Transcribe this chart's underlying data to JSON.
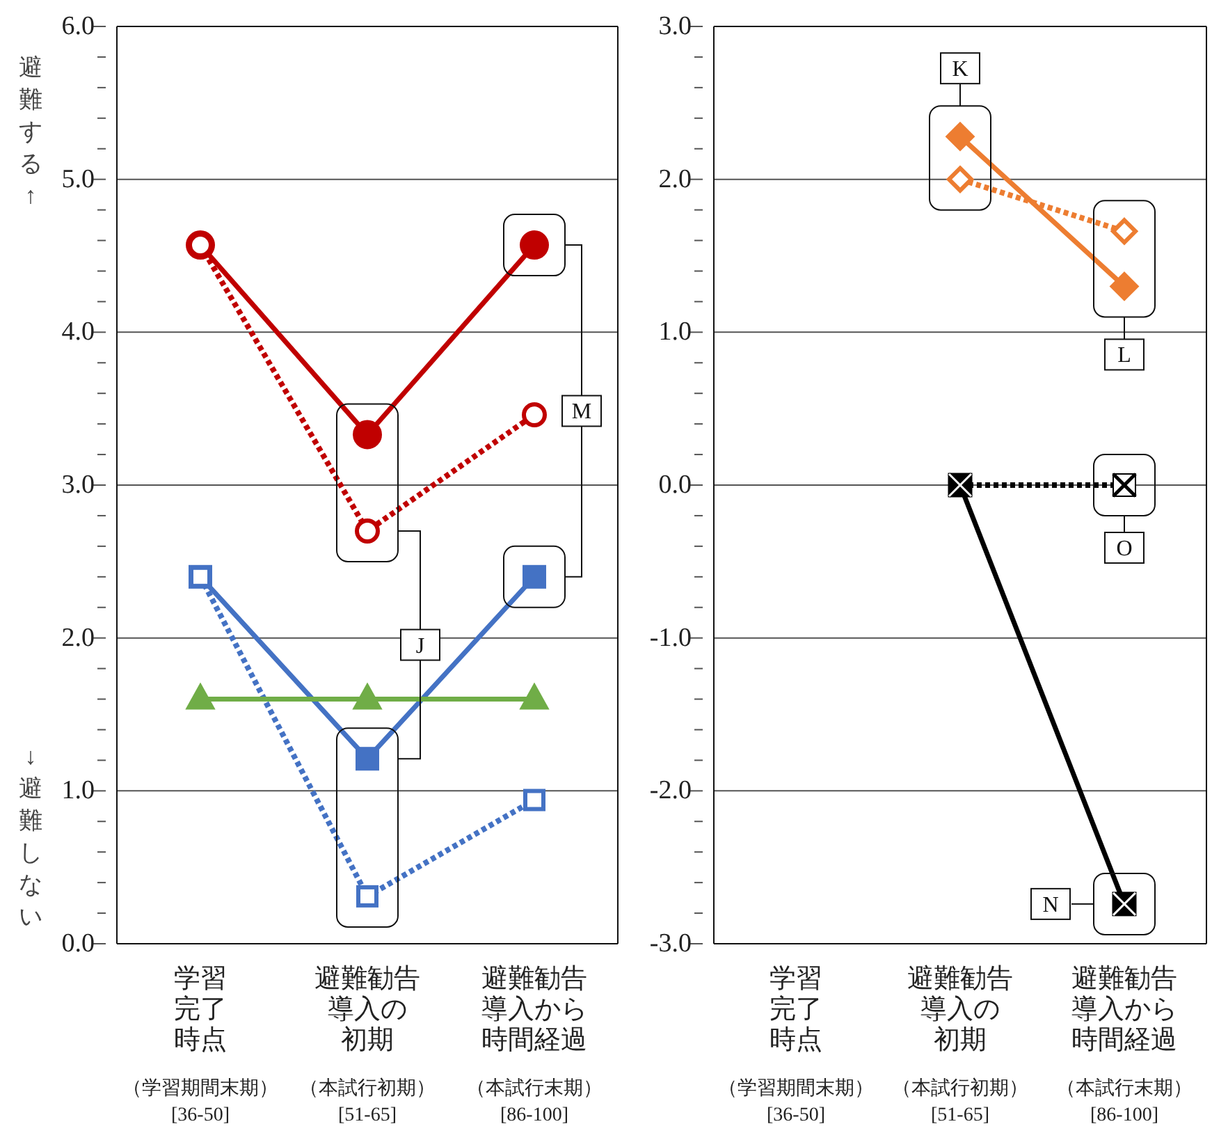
{
  "chart_data": [
    {
      "type": "line",
      "ylabel": "避難する↑",
      "categories": [
        "学習完了時点（学習期間末期）[36-50]",
        "避難勧告導入の初期（本試行初期）[51-65]",
        "避難勧告導入から時間経過（本試行末期）[86-100]"
      ],
      "series": [
        {
          "color": "#c00000",
          "values": [
            4.57,
            3.33,
            4.57
          ],
          "marker": "circle",
          "line_style": "solid"
        },
        {
          "color": "#c00000",
          "values": [
            4.57,
            2.7,
            3.46
          ],
          "marker": "circle",
          "line_style": "dotted"
        },
        {
          "color": "#4472c4",
          "values": [
            2.4,
            1.21,
            2.4
          ],
          "marker": "square",
          "line_style": "solid"
        },
        {
          "color": "#4472c4",
          "values": [
            2.4,
            0.31,
            0.94
          ],
          "marker": "square",
          "line_style": "dotted"
        },
        {
          "color": "#70ad47",
          "values": [
            1.6,
            1.6,
            1.6
          ],
          "marker": "triangle",
          "line_style": "solid"
        }
      ],
      "ylim": [
        0,
        6
      ],
      "yticks": [
        {
          "value": 0,
          "label": "0.0"
        },
        {
          "value": 0.2,
          "label": null
        },
        {
          "value": 0.4,
          "label": null
        },
        {
          "value": 0.6,
          "label": null
        },
        {
          "value": 0.8,
          "label": null
        },
        {
          "value": 1,
          "label": "1.0"
        },
        {
          "value": 1.2,
          "label": null
        },
        {
          "value": 1.4,
          "label": null
        },
        {
          "value": 1.6,
          "label": null
        },
        {
          "value": 1.8,
          "label": null
        },
        {
          "value": 2,
          "label": "2.0"
        },
        {
          "value": 2.2,
          "label": null
        },
        {
          "value": 2.4,
          "label": null
        },
        {
          "value": 2.6,
          "label": null
        },
        {
          "value": 2.8,
          "label": null
        },
        {
          "value": 3,
          "label": "3.0"
        },
        {
          "value": 3.2,
          "label": null
        },
        {
          "value": 3.4,
          "label": null
        },
        {
          "value": 3.6,
          "label": null
        },
        {
          "value": 3.8,
          "label": null
        },
        {
          "value": 4,
          "label": "4.0"
        },
        {
          "value": 4.2,
          "label": null
        },
        {
          "value": 4.4,
          "label": null
        },
        {
          "value": 4.6,
          "label": null
        },
        {
          "value": 4.8,
          "label": null
        },
        {
          "value": 5,
          "label": "5.0"
        },
        {
          "value": 5.2,
          "label": null
        },
        {
          "value": 5.4,
          "label": null
        },
        {
          "value": 5.6,
          "label": null
        },
        {
          "value": 5.8,
          "label": null
        },
        {
          "value": 6,
          "label": "6.0"
        }
      ],
      "grid": "y",
      "annotations": [
        "J",
        "M",
        "↓避難しない"
      ]
    },
    {
      "type": "line",
      "categories": [
        "学習完了時点（学習期間末期）[36-50]",
        "避難勧告導入の初期（本試行初期）[51-65]",
        "避難勧告導入から時間経過（本試行末期）[86-100]"
      ],
      "series": [
        {
          "color": "#ed7d31",
          "values": [
            null,
            2.28,
            1.3
          ],
          "marker": "diamond",
          "line_style": "solid"
        },
        {
          "color": "#ed7d31",
          "values": [
            null,
            2.0,
            1.66
          ],
          "marker": "diamond",
          "line_style": "dotted"
        },
        {
          "color": "#000000",
          "values": [
            null,
            0,
            0
          ],
          "marker": "cross",
          "line_style": "dotted"
        },
        {
          "color": "#000000",
          "values": [
            null,
            0,
            -2.74
          ],
          "marker": "cross",
          "line_style": "solid"
        }
      ],
      "ylim": [
        -3,
        3
      ],
      "yticks": [
        {
          "value": -3,
          "label": "-3.0"
        },
        {
          "value": -2.8,
          "label": null
        },
        {
          "value": -2.6,
          "label": null
        },
        {
          "value": -2.4,
          "label": null
        },
        {
          "value": -2.2,
          "label": null
        },
        {
          "value": -2,
          "label": "-2.0"
        },
        {
          "value": -1.8,
          "label": null
        },
        {
          "value": -1.6,
          "label": null
        },
        {
          "value": -1.4,
          "label": null
        },
        {
          "value": -1.2,
          "label": null
        },
        {
          "value": -1,
          "label": "-1.0"
        },
        {
          "value": -0.8,
          "label": null
        },
        {
          "value": -0.6,
          "label": null
        },
        {
          "value": -0.4,
          "label": null
        },
        {
          "value": -0.2,
          "label": null
        },
        {
          "value": 0,
          "label": "0.0"
        },
        {
          "value": 0.2,
          "label": null
        },
        {
          "value": 0.4,
          "label": null
        },
        {
          "value": 0.6,
          "label": null
        },
        {
          "value": 0.8,
          "label": null
        },
        {
          "value": 1,
          "label": "1.0"
        },
        {
          "value": 1.2,
          "label": null
        },
        {
          "value": 1.4,
          "label": null
        },
        {
          "value": 1.6,
          "label": null
        },
        {
          "value": 1.8,
          "label": null
        },
        {
          "value": 2,
          "label": "2.0"
        },
        {
          "value": 2.2,
          "label": null
        },
        {
          "value": 2.4,
          "label": null
        },
        {
          "value": 2.6,
          "label": null
        },
        {
          "value": 2.8,
          "label": null
        },
        {
          "value": 3,
          "label": "3.0"
        }
      ],
      "grid": "y",
      "annotations": [
        "K",
        "L",
        "O",
        "N"
      ]
    }
  ]
}
